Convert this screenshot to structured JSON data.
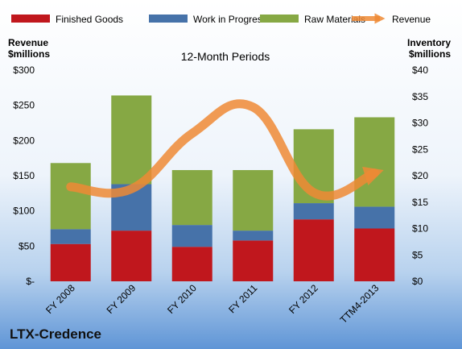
{
  "chart_data": {
    "type": "bar",
    "stacked": true,
    "subtitle": "12-Month Periods",
    "company": "LTX-Credence",
    "left_axis": {
      "title_line1": "Revenue",
      "title_line2": "$millions",
      "ylim": [
        0,
        300
      ],
      "ticks": [
        "$-",
        "$50",
        "$100",
        "$150",
        "$200",
        "$250",
        "$300"
      ]
    },
    "right_axis": {
      "title_line1": "Inventory",
      "title_line2": "$millions",
      "ylim": [
        0,
        40
      ],
      "ticks": [
        "$0",
        "$5",
        "$10",
        "$15",
        "$20",
        "$25",
        "$30",
        "$35",
        "$40"
      ]
    },
    "categories": [
      "FY 2008",
      "FY 2009",
      "FY 2010",
      "FY 2011",
      "FY 2012",
      "TTM4-2013"
    ],
    "series": [
      {
        "name": "Finished Goods",
        "color": "#c0171d",
        "values": [
          53,
          72,
          49,
          58,
          88,
          75
        ]
      },
      {
        "name": "Work in Progress",
        "color": "#4672a9",
        "values": [
          21,
          66,
          31,
          14,
          23,
          31
        ]
      },
      {
        "name": "Raw Materials",
        "color": "#86a844",
        "values": [
          94,
          126,
          78,
          86,
          105,
          127
        ]
      }
    ],
    "line_series": {
      "name": "Revenue",
      "color": "#ef8a35",
      "values": [
        17.9,
        17.5,
        28,
        33,
        16.8,
        20.5
      ],
      "axis": "right"
    },
    "grid": false,
    "legend_position": "top"
  }
}
